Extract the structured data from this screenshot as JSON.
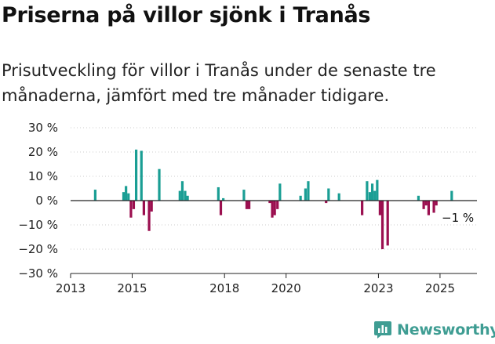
{
  "title": "Priserna på villor sjönk i Tranås",
  "subtitle": "Prisutveckling för villor i Tranås under de senaste tre månaderna, jämfört med tre månader tidigare.",
  "brand": "Newsworthy",
  "colors": {
    "positive": "#1a9e94",
    "negative": "#9b0f4f",
    "axis": "#222222",
    "grid": "#cccccc",
    "brand": "#3f9d93"
  },
  "chart_data": {
    "type": "bar",
    "title": "",
    "xlabel": "",
    "ylabel": "",
    "ylim": [
      -30,
      30
    ],
    "y_ticks": [
      30,
      20,
      10,
      0,
      -10,
      -20,
      -30
    ],
    "y_tick_labels": [
      "30 %",
      "20 %",
      "10 %",
      "0 %",
      "−10 %",
      "−20 %",
      "−30 %"
    ],
    "xlim": [
      2013.0,
      2026.2
    ],
    "x_ticks": [
      2013,
      2015,
      2018,
      2020,
      2023,
      2025
    ],
    "x_tick_labels": [
      "2013",
      "2015",
      "2018",
      "2020",
      "2023",
      "2025"
    ],
    "grid": true,
    "annotation": "−1 %",
    "series": [
      {
        "x": [
          2013.8,
          2014.72,
          2014.8,
          2014.88,
          2014.96,
          2015.05,
          2015.13,
          2015.3,
          2015.38,
          2015.55,
          2015.63,
          2015.88,
          2016.55,
          2016.63,
          2016.72,
          2016.8,
          2017.8,
          2017.88,
          2017.96,
          2018.63,
          2018.72,
          2018.8,
          2019.47,
          2019.55,
          2019.63,
          2019.72,
          2019.8,
          2020.47,
          2020.63,
          2020.72,
          2021.3,
          2021.38,
          2021.72,
          2022.47,
          2022.63,
          2022.72,
          2022.8,
          2022.88,
          2022.96,
          2023.05,
          2023.13,
          2023.3,
          2024.3,
          2024.47,
          2024.55,
          2024.63,
          2024.8,
          2024.88,
          2025.38
        ],
        "values": [
          4.5,
          3.5,
          6.0,
          3.0,
          -7.0,
          -3.5,
          21.0,
          20.5,
          -6.0,
          -12.5,
          -4.5,
          13.0,
          4.0,
          8.0,
          4.0,
          2.0,
          5.5,
          -6.0,
          1.0,
          4.5,
          -3.5,
          -3.5,
          -1.0,
          -7.0,
          -6.0,
          -3.5,
          7.0,
          2.0,
          5.0,
          8.0,
          -1.0,
          5.0,
          3.0,
          -6.0,
          8.0,
          3.5,
          7.0,
          4.0,
          8.5,
          -6.0,
          -20.0,
          -18.5,
          2.0,
          -3.5,
          -2.0,
          -6.0,
          -5.0,
          -2.0,
          4.0
        ]
      }
    ]
  }
}
